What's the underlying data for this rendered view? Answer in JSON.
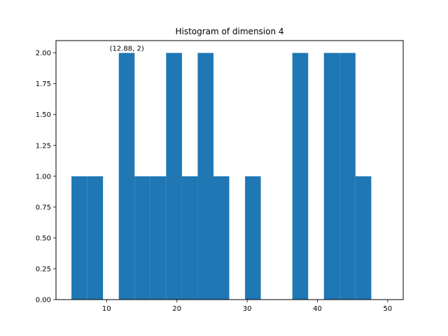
{
  "chart_data": {
    "type": "bar",
    "title": "Histogram of dimension 4",
    "xlabel": "",
    "ylabel": "",
    "xlim": [
      2.8,
      52.2
    ],
    "ylim": [
      0,
      2.1
    ],
    "xticks": [
      10,
      20,
      30,
      40,
      50
    ],
    "yticks": [
      0.0,
      0.25,
      0.5,
      0.75,
      1.0,
      1.25,
      1.5,
      1.75,
      2.0
    ],
    "ytick_labels": [
      "0.00",
      "0.25",
      "0.50",
      "0.75",
      "1.00",
      "1.25",
      "1.50",
      "1.75",
      "2.00"
    ],
    "bin_start": 5.0,
    "bin_width": 2.245,
    "bins": [
      {
        "x0": 5.0,
        "x1": 7.25,
        "count": 1
      },
      {
        "x0": 7.25,
        "x1": 9.49,
        "count": 1
      },
      {
        "x0": 9.49,
        "x1": 11.74,
        "count": 0
      },
      {
        "x0": 11.74,
        "x1": 13.98,
        "count": 2
      },
      {
        "x0": 13.98,
        "x1": 16.23,
        "count": 1
      },
      {
        "x0": 16.23,
        "x1": 18.47,
        "count": 1
      },
      {
        "x0": 18.47,
        "x1": 20.72,
        "count": 2
      },
      {
        "x0": 20.72,
        "x1": 22.96,
        "count": 1
      },
      {
        "x0": 22.96,
        "x1": 25.21,
        "count": 2
      },
      {
        "x0": 25.21,
        "x1": 27.45,
        "count": 1
      },
      {
        "x0": 27.45,
        "x1": 29.7,
        "count": 0
      },
      {
        "x0": 29.7,
        "x1": 31.94,
        "count": 1
      },
      {
        "x0": 31.94,
        "x1": 34.19,
        "count": 0
      },
      {
        "x0": 34.19,
        "x1": 36.43,
        "count": 0
      },
      {
        "x0": 36.43,
        "x1": 38.68,
        "count": 2
      },
      {
        "x0": 38.68,
        "x1": 40.92,
        "count": 0
      },
      {
        "x0": 40.92,
        "x1": 43.17,
        "count": 2
      },
      {
        "x0": 43.17,
        "x1": 45.41,
        "count": 2
      },
      {
        "x0": 45.41,
        "x1": 47.66,
        "count": 1
      },
      {
        "x0": 47.66,
        "x1": 49.9,
        "count": 0
      }
    ],
    "color": "#1f77b4",
    "annotation": {
      "text": "(12.88, 2)",
      "x": 12.88,
      "y": 2
    },
    "grid": false
  }
}
